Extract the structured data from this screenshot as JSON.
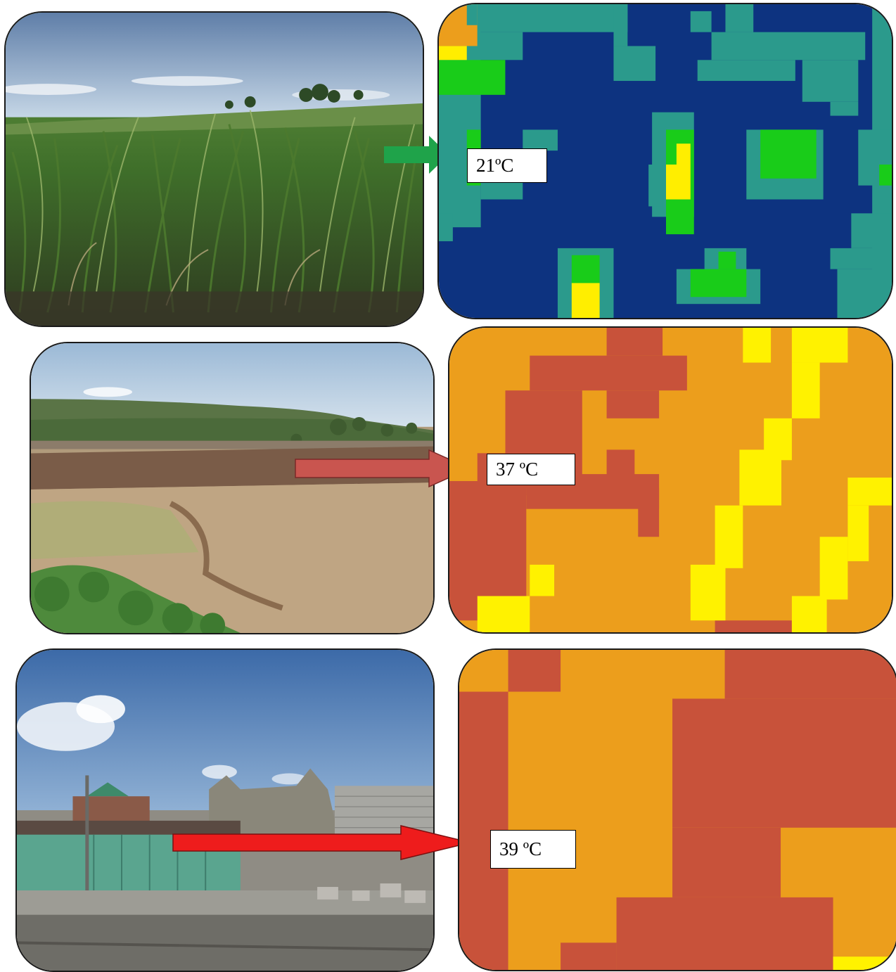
{
  "rows": [
    {
      "scene": "vegetation",
      "temperature_label": "21ºC",
      "arrow_color": "#1fa34a",
      "map_palette": {
        "low": "#0d3380",
        "mid": "#2b9a8c",
        "high": "#19cc19",
        "max": "#ffee00"
      }
    },
    {
      "scene": "bare-farmland",
      "temperature_label": "37 ºC",
      "arrow_color": "#c9554f",
      "map_palette": {
        "warm": "#ec9e1c",
        "hot": "#c8523a",
        "cooler": "#fff200"
      }
    },
    {
      "scene": "built-up",
      "temperature_label": "39 ºC",
      "arrow_color": "#ee1c1c",
      "map_palette": {
        "warm": "#ec9e1c",
        "hot": "#c8523a",
        "cooler": "#fff200"
      }
    }
  ]
}
